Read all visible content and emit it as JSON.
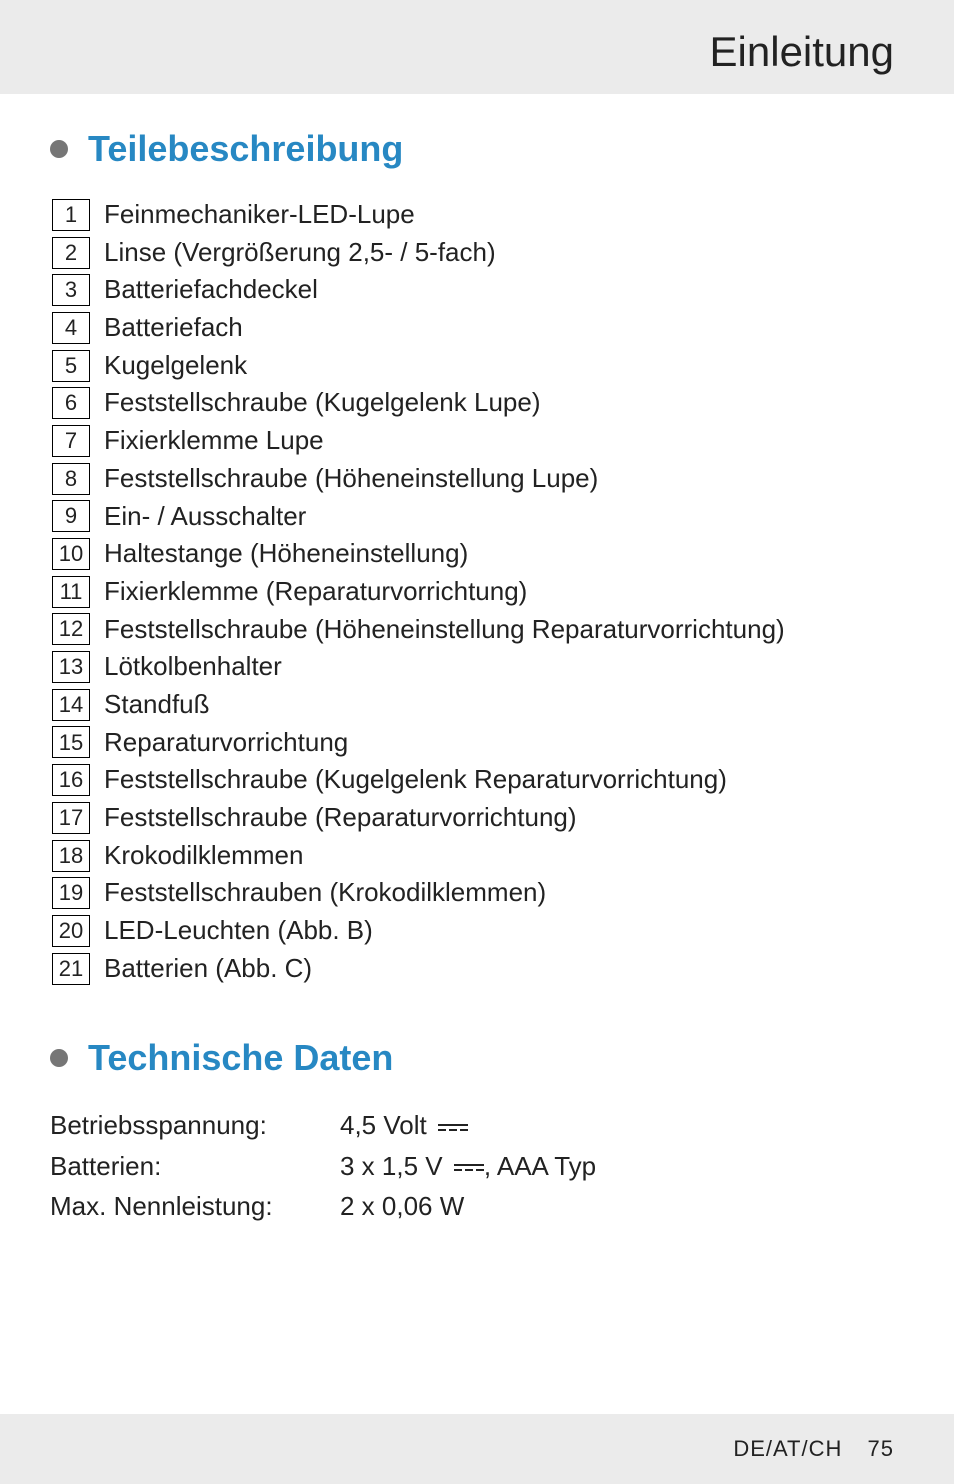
{
  "header": {
    "title": "Einleitung"
  },
  "section_parts": {
    "heading": "Teilebeschreibung"
  },
  "parts": [
    {
      "n": "1",
      "t": "Feinmechaniker-LED-Lupe"
    },
    {
      "n": "2",
      "t": "Linse (Vergrößerung 2,5- / 5-fach)"
    },
    {
      "n": "3",
      "t": "Batteriefachdeckel"
    },
    {
      "n": "4",
      "t": "Batteriefach"
    },
    {
      "n": "5",
      "t": "Kugelgelenk"
    },
    {
      "n": "6",
      "t": "Feststellschraube (Kugelgelenk Lupe)"
    },
    {
      "n": "7",
      "t": "Fixierklemme Lupe"
    },
    {
      "n": "8",
      "t": "Feststellschraube (Höheneinstellung Lupe)"
    },
    {
      "n": "9",
      "t": "Ein- / Ausschalter"
    },
    {
      "n": "10",
      "t": "Haltestange (Höheneinstellung)"
    },
    {
      "n": "11",
      "t": "Fixierklemme (Reparaturvorrichtung)"
    },
    {
      "n": "12",
      "t": "Feststellschraube (Höheneinstellung Reparaturvorrichtung)"
    },
    {
      "n": "13",
      "t": "Lötkolbenhalter"
    },
    {
      "n": "14",
      "t": "Standfuß"
    },
    {
      "n": "15",
      "t": "Reparaturvorrichtung"
    },
    {
      "n": "16",
      "t": "Feststellschraube (Kugelgelenk Reparaturvorrichtung)"
    },
    {
      "n": "17",
      "t": "Feststellschraube (Reparaturvorrichtung)"
    },
    {
      "n": "18",
      "t": "Krokodilklemmen"
    },
    {
      "n": "19",
      "t": "Feststellschrauben (Krokodilklemmen)"
    },
    {
      "n": "20",
      "t": "LED-Leuchten (Abb. B)"
    },
    {
      "n": "21",
      "t": "Batterien (Abb. C)"
    }
  ],
  "section_tech": {
    "heading": "Technische Daten"
  },
  "specs": {
    "voltage_label": "Betriebsspannung:",
    "voltage_value": "4,5 Volt",
    "battery_label": "Batterien:",
    "battery_prefix": "3 x 1,5 V",
    "battery_suffix": ", AAA Typ",
    "power_label": "Max. Nennleistung:",
    "power_value": "2 x 0,06 W"
  },
  "footer": {
    "locale": "DE/AT/CH",
    "page": "75"
  },
  "colors": {
    "accent": "#2788c3",
    "band": "#ebebeb",
    "dot": "#767676",
    "text": "#222"
  }
}
